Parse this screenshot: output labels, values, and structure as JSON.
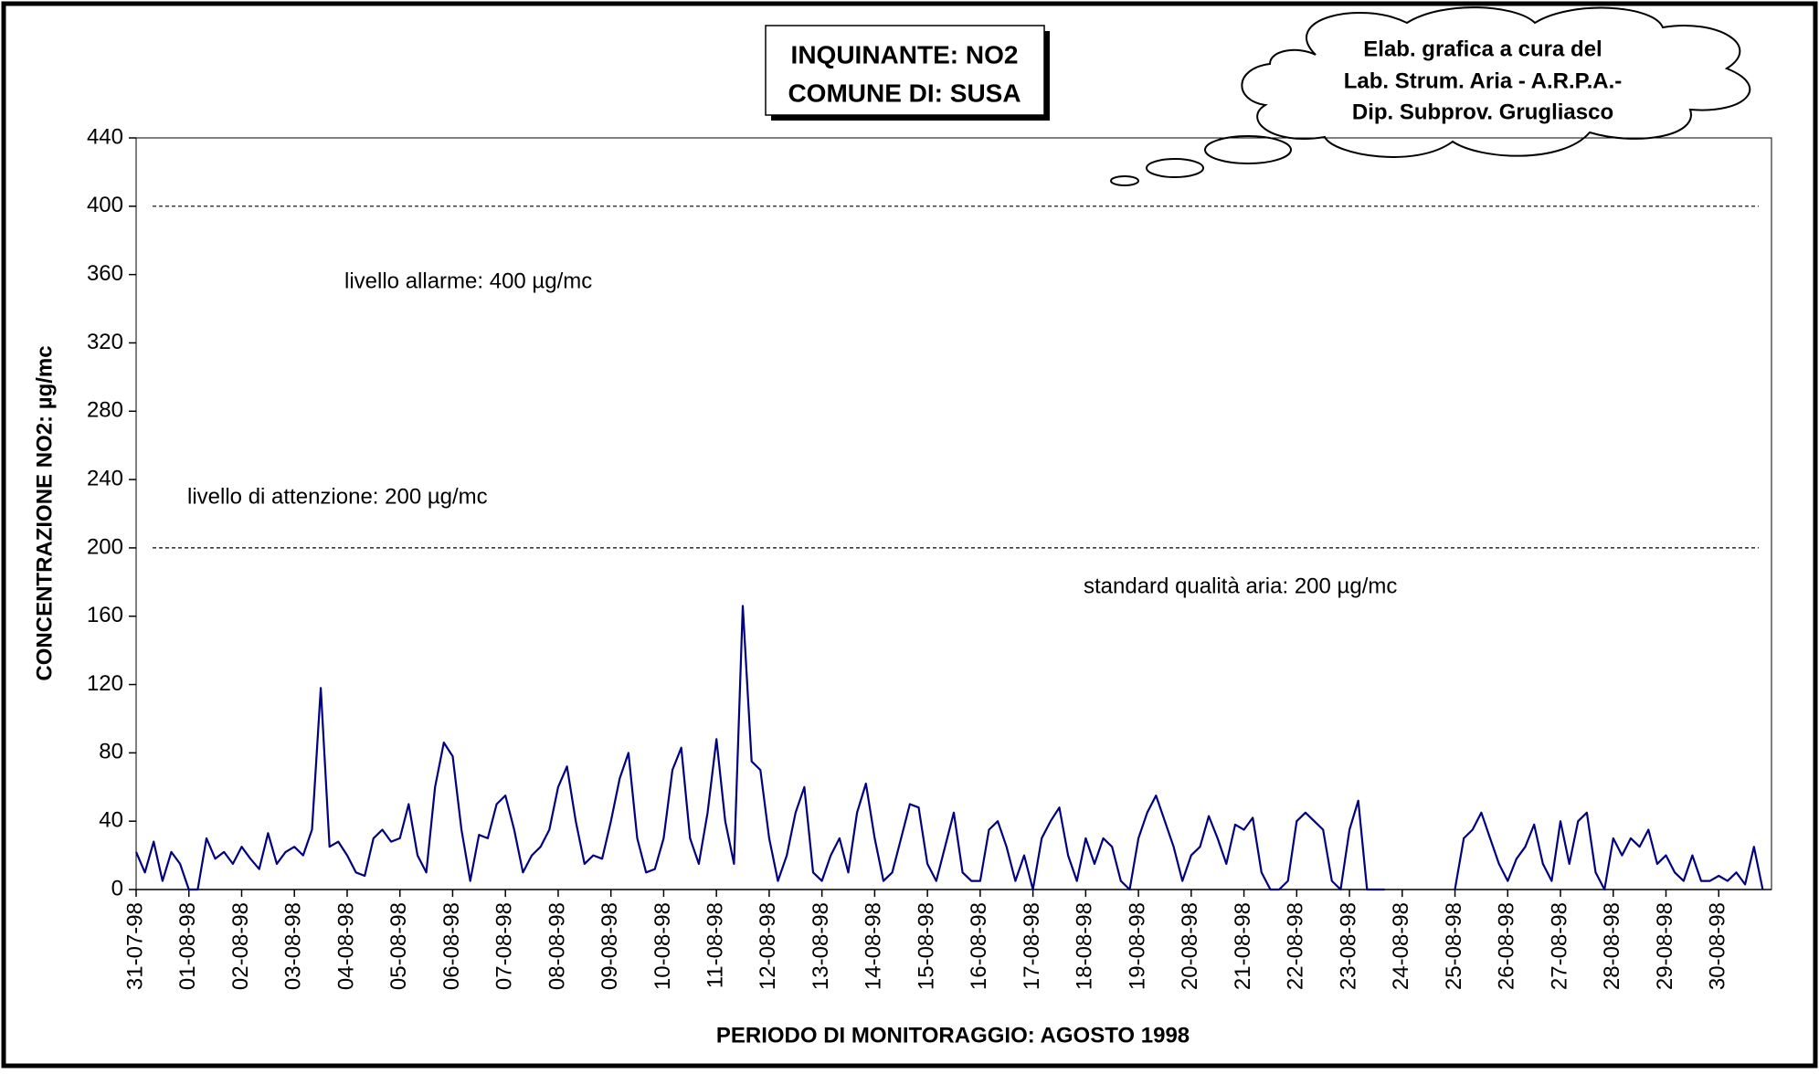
{
  "chart_data": {
    "type": "line",
    "title_lines": [
      "INQUINANTE: NO2",
      "COMUNE DI: SUSA"
    ],
    "credit_lines": [
      "Elab. grafica a cura del",
      "Lab. Strum. Aria - A.R.P.A.-",
      "Dip. Subprov. Grugliasco"
    ],
    "ylabel": "CONCENTRAZIONE NO2:  µg/mc",
    "xlabel": "PERIODO DI MONITORAGGIO: AGOSTO 1998",
    "annotations": [
      "livello allarme: 400 µg/mc",
      "livello di attenzione: 200  µg/mc",
      "standard qualità aria: 200 µg/mc"
    ],
    "reference_lines": [
      400,
      200
    ],
    "ylim": [
      0,
      440
    ],
    "yticks": [
      0,
      40,
      80,
      120,
      160,
      200,
      240,
      280,
      320,
      360,
      400,
      440
    ],
    "color": "#000080",
    "categories": [
      "31-07-98",
      null,
      null,
      null,
      null,
      null,
      "01-08-98",
      null,
      null,
      null,
      null,
      null,
      "02-08-98",
      null,
      null,
      null,
      null,
      null,
      "03-08-98",
      null,
      null,
      null,
      null,
      null,
      "04-08-98",
      null,
      null,
      null,
      null,
      null,
      "05-08-98",
      null,
      null,
      null,
      null,
      null,
      "06-08-98",
      null,
      null,
      null,
      null,
      null,
      "07-08-98",
      null,
      null,
      null,
      null,
      null,
      "08-08-98",
      null,
      null,
      null,
      null,
      null,
      "09-08-98",
      null,
      null,
      null,
      null,
      null,
      "10-08-98",
      null,
      null,
      null,
      null,
      null,
      "11-08-98",
      null,
      null,
      null,
      null,
      null,
      "12-08-98",
      null,
      null,
      null,
      null,
      null,
      "13-08-98",
      null,
      null,
      null,
      null,
      null,
      "14-08-98",
      null,
      null,
      null,
      null,
      null,
      "15-08-98",
      null,
      null,
      null,
      null,
      null,
      "16-08-98",
      null,
      null,
      null,
      null,
      null,
      "17-08-98",
      null,
      null,
      null,
      null,
      null,
      "18-08-98",
      null,
      null,
      null,
      null,
      null,
      "19-08-98",
      null,
      null,
      null,
      null,
      null,
      "20-08-98",
      null,
      null,
      null,
      null,
      null,
      "21-08-98",
      null,
      null,
      null,
      null,
      null,
      "22-08-98",
      null,
      null,
      null,
      null,
      null,
      "23-08-98",
      null,
      null,
      null,
      null,
      null,
      "24-08-98",
      null,
      null,
      null,
      null,
      null,
      "25-08-98",
      null,
      null,
      null,
      null,
      null,
      "26-08-98",
      null,
      null,
      null,
      null,
      null,
      "27-08-98",
      null,
      null,
      null,
      null,
      null,
      "28-08-98",
      null,
      null,
      null,
      null,
      null,
      "29-08-98",
      null,
      null,
      null,
      null,
      null,
      "30-08-98",
      null,
      null,
      null,
      null,
      null
    ],
    "values": [
      22,
      10,
      28,
      5,
      22,
      15,
      0,
      0,
      30,
      18,
      22,
      15,
      25,
      18,
      12,
      33,
      15,
      22,
      25,
      20,
      35,
      118,
      25,
      28,
      20,
      10,
      8,
      30,
      35,
      28,
      30,
      50,
      20,
      10,
      60,
      86,
      78,
      35,
      5,
      32,
      30,
      50,
      55,
      35,
      10,
      20,
      25,
      35,
      60,
      72,
      40,
      15,
      20,
      18,
      40,
      65,
      80,
      30,
      10,
      12,
      30,
      70,
      83,
      30,
      15,
      45,
      88,
      40,
      15,
      166,
      75,
      70,
      30,
      5,
      20,
      45,
      60,
      10,
      5,
      20,
      30,
      10,
      45,
      62,
      30,
      5,
      10,
      30,
      50,
      48,
      15,
      5,
      25,
      45,
      10,
      5,
      5,
      35,
      40,
      25,
      5,
      20,
      0,
      30,
      40,
      48,
      20,
      5,
      30,
      15,
      30,
      25,
      5,
      0,
      30,
      45,
      55,
      40,
      25,
      5,
      20,
      25,
      43,
      30,
      15,
      38,
      35,
      42,
      10,
      0,
      0,
      5,
      40,
      45,
      40,
      35,
      5,
      0,
      35,
      52,
      0,
      0,
      0,
      null,
      null,
      null,
      null,
      null,
      null,
      null,
      0,
      30,
      35,
      45,
      30,
      15,
      5,
      18,
      25,
      38,
      15,
      5,
      40,
      15,
      40,
      45,
      10,
      0,
      30,
      20,
      30,
      25,
      35,
      15,
      20,
      10,
      5,
      20,
      5,
      5,
      8,
      5,
      10,
      3,
      25,
      0
    ]
  }
}
